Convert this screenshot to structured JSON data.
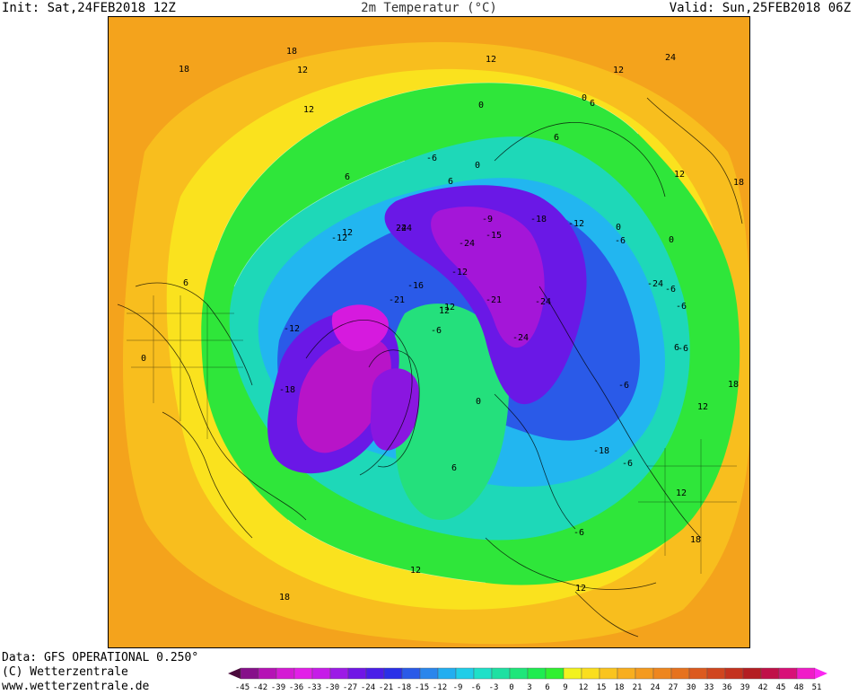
{
  "header": {
    "init": "Init: Sat,24FEB2018 12Z",
    "title": "2m Temperatur (°C)",
    "valid": "Valid: Sun,25FEB2018 06Z"
  },
  "footer": {
    "data_source": "Data: GFS OPERATIONAL 0.250°",
    "copyright": "(C) Wetterzentrale",
    "website": "www.wetterzentrale.de"
  },
  "legend": {
    "ticks": [
      "-45",
      "-42",
      "-39",
      "-36",
      "-33",
      "-30",
      "-27",
      "-24",
      "-21",
      "-18",
      "-15",
      "-12",
      "-9",
      "-6",
      "-3",
      "0",
      "3",
      "6",
      "9",
      "12",
      "15",
      "18",
      "21",
      "24",
      "27",
      "30",
      "33",
      "36",
      "39",
      "42",
      "45",
      "48",
      "51"
    ],
    "colors": [
      "#4a0a3c",
      "#86108a",
      "#b512b5",
      "#d41ad4",
      "#e21ee8",
      "#c61ce8",
      "#9c1ae6",
      "#7016e6",
      "#4a1ee8",
      "#2a30e8",
      "#2a5ae8",
      "#2a86ec",
      "#22aef0",
      "#20cde8",
      "#1ee0c8",
      "#1ee0a2",
      "#1ee67a",
      "#1eec50",
      "#30f030",
      "#f2f21e",
      "#fade1e",
      "#fac41e",
      "#f8ae1e",
      "#f49a1e",
      "#ee861e",
      "#e6721e",
      "#dc5a1e",
      "#d0461e",
      "#c4321e",
      "#b41e22",
      "#c01048",
      "#d81078",
      "#f01cc8",
      "#fa28f0"
    ]
  },
  "map": {
    "contour_labels": [
      "-24",
      "-24",
      "-24",
      "-24",
      "-21",
      "-21",
      "-18",
      "-18",
      "-18",
      "-16",
      "-15",
      "-12",
      "-12",
      "-12",
      "-12",
      "-12",
      "-9",
      "-6",
      "-6",
      "-6",
      "-6",
      "-6",
      "-6",
      "-6",
      "-6",
      "-6",
      "0",
      "0",
      "0",
      "0",
      "0",
      "0",
      "0",
      "6",
      "6",
      "6",
      "6",
      "6",
      "6",
      "6",
      "12",
      "12",
      "12",
      "12",
      "12",
      "12",
      "12",
      "12",
      "12",
      "12",
      "12",
      "18",
      "18",
      "18",
      "18",
      "18",
      "18",
      "-24",
      "24",
      "24"
    ]
  }
}
